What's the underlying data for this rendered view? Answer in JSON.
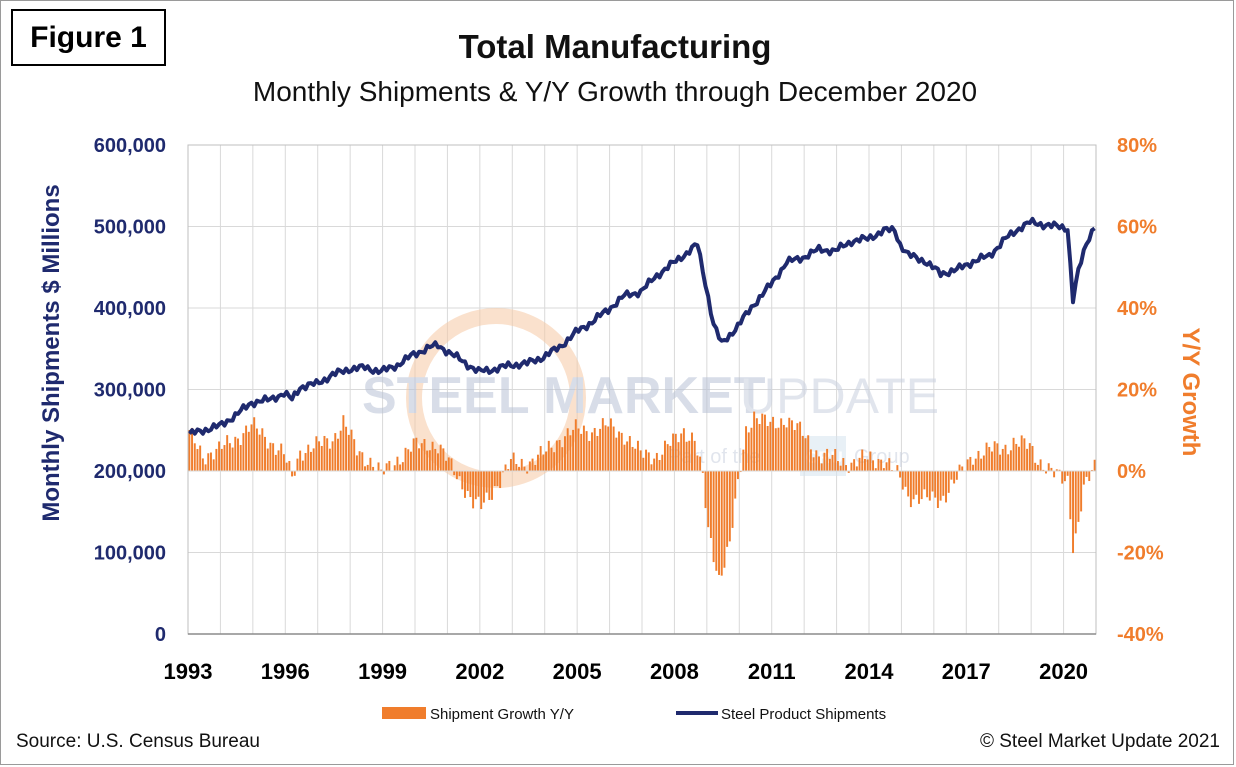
{
  "figure_label": "Figure 1",
  "source_note": "Source: U.S. Census Bureau",
  "copyright_note": "© Steel Market Update 2021",
  "watermark": {
    "text_left": "STEEL MARKET",
    "text_right": "UPDATE",
    "subtext_left": "Part of the",
    "subtext_logo": "CRU",
    "subtext_right": "Group"
  },
  "colors": {
    "bars": "#f07d2c",
    "line": "#1f2a6e",
    "left_axis": "#1f2a6e",
    "right_axis": "#f07d2c",
    "grid": "#d9d9d9"
  },
  "chart_data": {
    "type": "bar+line",
    "title": "Total Manufacturing",
    "subtitle": "Monthly Shipments & Y/Y Growth through December 2020",
    "ylabel_left": "Monthly Shipments $ Millions",
    "ylabel_right": "Y/Y Growth",
    "ylim_left": [
      0,
      600000
    ],
    "ylim_right": [
      -40,
      80
    ],
    "y_ticks_left": [
      "0",
      "100,000",
      "200,000",
      "300,000",
      "400,000",
      "500,000",
      "600,000"
    ],
    "y_ticks_right": [
      "-40%",
      "-20%",
      "0%",
      "20%",
      "40%",
      "60%",
      "80%"
    ],
    "x_range": [
      "1993-01",
      "2020-12"
    ],
    "x_ticks": [
      "1993",
      "1996",
      "1999",
      "2002",
      "2005",
      "2008",
      "2011",
      "2014",
      "2017",
      "2020"
    ],
    "grid": true,
    "legend_position": "bottom",
    "series": [
      {
        "name": "Shipment Growth Y/Y",
        "kind": "bar",
        "axis": "right",
        "unit": "%",
        "points": [
          [
            "1993-01",
            9
          ],
          [
            "1993-06",
            4
          ],
          [
            "1993-12",
            5
          ],
          [
            "1994-06",
            8
          ],
          [
            "1994-12",
            11
          ],
          [
            "1995-06",
            8
          ],
          [
            "1995-12",
            4
          ],
          [
            "1996-03",
            -2
          ],
          [
            "1996-06",
            5
          ],
          [
            "1996-12",
            6
          ],
          [
            "1997-06",
            8
          ],
          [
            "1997-10",
            12
          ],
          [
            "1998-03",
            5
          ],
          [
            "1998-09",
            2
          ],
          [
            "1998-12",
            -1
          ],
          [
            "1999-06",
            3
          ],
          [
            "1999-12",
            6
          ],
          [
            "2000-06",
            7
          ],
          [
            "2000-09",
            6
          ],
          [
            "2001-01",
            2
          ],
          [
            "2001-06",
            -3
          ],
          [
            "2001-10",
            -8
          ],
          [
            "2002-01",
            -9
          ],
          [
            "2002-06",
            -4
          ],
          [
            "2002-12",
            2
          ],
          [
            "2003-06",
            2
          ],
          [
            "2003-12",
            4
          ],
          [
            "2004-06",
            8
          ],
          [
            "2004-12",
            10
          ],
          [
            "2005-06",
            10
          ],
          [
            "2005-12",
            11
          ],
          [
            "2006-06",
            9
          ],
          [
            "2006-12",
            4
          ],
          [
            "2007-06",
            4
          ],
          [
            "2007-12",
            7
          ],
          [
            "2008-04",
            10
          ],
          [
            "2008-08",
            8
          ],
          [
            "2008-11",
            -2
          ],
          [
            "2009-01",
            -15
          ],
          [
            "2009-05",
            -26
          ],
          [
            "2009-09",
            -18
          ],
          [
            "2009-12",
            -4
          ],
          [
            "2010-03",
            10
          ],
          [
            "2010-06",
            14
          ],
          [
            "2010-12",
            11
          ],
          [
            "2011-06",
            13
          ],
          [
            "2011-12",
            9
          ],
          [
            "2012-06",
            4
          ],
          [
            "2012-12",
            3
          ],
          [
            "2013-06",
            2
          ],
          [
            "2013-12",
            3
          ],
          [
            "2014-06",
            3
          ],
          [
            "2014-12",
            -2
          ],
          [
            "2015-03",
            -6
          ],
          [
            "2015-09",
            -7
          ],
          [
            "2016-03",
            -7
          ],
          [
            "2016-09",
            -2
          ],
          [
            "2017-03",
            4
          ],
          [
            "2017-09",
            5
          ],
          [
            "2018-03",
            6
          ],
          [
            "2018-06",
            7
          ],
          [
            "2018-12",
            6
          ],
          [
            "2019-03",
            3
          ],
          [
            "2019-09",
            -1
          ],
          [
            "2019-12",
            -2
          ],
          [
            "2020-02",
            -2
          ],
          [
            "2020-04",
            -18
          ],
          [
            "2020-05",
            -16
          ],
          [
            "2020-08",
            -5
          ],
          [
            "2020-12",
            1
          ]
        ]
      },
      {
        "name": "Steel Product Shipments",
        "kind": "line",
        "axis": "left",
        "unit": "$ millions",
        "points": [
          [
            "1993-01",
            245000
          ],
          [
            "1993-06",
            250000
          ],
          [
            "1993-12",
            255000
          ],
          [
            "1994-06",
            268000
          ],
          [
            "1994-12",
            284000
          ],
          [
            "1995-06",
            287000
          ],
          [
            "1995-12",
            295000
          ],
          [
            "1996-03",
            288000
          ],
          [
            "1996-06",
            303000
          ],
          [
            "1996-12",
            307000
          ],
          [
            "1997-06",
            318000
          ],
          [
            "1997-12",
            325000
          ],
          [
            "1998-06",
            327000
          ],
          [
            "1998-12",
            322000
          ],
          [
            "1999-06",
            330000
          ],
          [
            "1999-12",
            343000
          ],
          [
            "2000-06",
            352000
          ],
          [
            "2000-09",
            354000
          ],
          [
            "2000-12",
            348000
          ],
          [
            "2001-06",
            335000
          ],
          [
            "2001-12",
            322000
          ],
          [
            "2002-06",
            325000
          ],
          [
            "2002-12",
            330000
          ],
          [
            "2003-06",
            332000
          ],
          [
            "2003-12",
            340000
          ],
          [
            "2004-06",
            352000
          ],
          [
            "2004-12",
            370000
          ],
          [
            "2005-06",
            383000
          ],
          [
            "2005-12",
            398000
          ],
          [
            "2006-06",
            415000
          ],
          [
            "2006-12",
            420000
          ],
          [
            "2007-06",
            440000
          ],
          [
            "2007-12",
            455000
          ],
          [
            "2008-06",
            470000
          ],
          [
            "2008-09",
            478000
          ],
          [
            "2008-12",
            430000
          ],
          [
            "2009-03",
            380000
          ],
          [
            "2009-06",
            356000
          ],
          [
            "2009-12",
            378000
          ],
          [
            "2010-06",
            405000
          ],
          [
            "2010-12",
            428000
          ],
          [
            "2011-06",
            456000
          ],
          [
            "2011-12",
            462000
          ],
          [
            "2012-06",
            472000
          ],
          [
            "2012-12",
            470000
          ],
          [
            "2013-06",
            482000
          ],
          [
            "2013-12",
            485000
          ],
          [
            "2014-06",
            495000
          ],
          [
            "2014-10",
            496000
          ],
          [
            "2014-12",
            478000
          ],
          [
            "2015-03",
            465000
          ],
          [
            "2015-09",
            458000
          ],
          [
            "2016-03",
            442000
          ],
          [
            "2016-09",
            447000
          ],
          [
            "2017-03",
            457000
          ],
          [
            "2017-09",
            464000
          ],
          [
            "2018-03",
            485000
          ],
          [
            "2018-09",
            500000
          ],
          [
            "2018-12",
            505000
          ],
          [
            "2019-06",
            502000
          ],
          [
            "2019-12",
            499000
          ],
          [
            "2020-02",
            498000
          ],
          [
            "2020-04",
            410000
          ],
          [
            "2020-06",
            445000
          ],
          [
            "2020-09",
            480000
          ],
          [
            "2020-12",
            501000
          ]
        ]
      }
    ]
  }
}
